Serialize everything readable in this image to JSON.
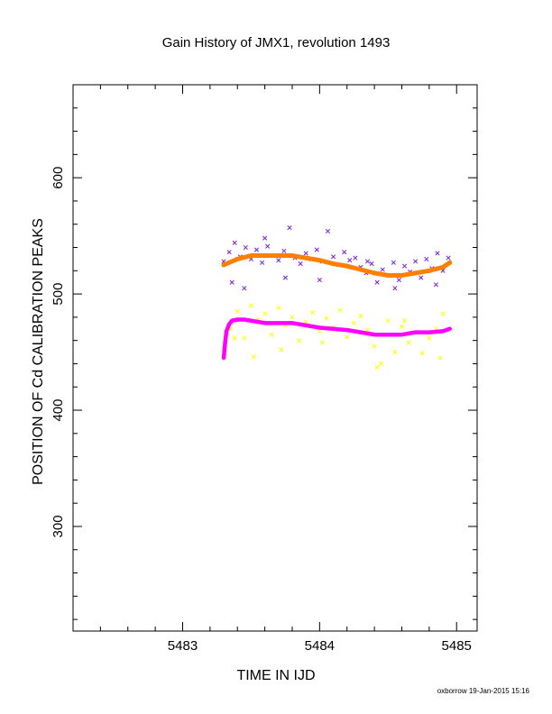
{
  "chart_data": {
    "type": "scatter",
    "title": "Gain History of JMX1, revolution 1493",
    "xlabel": "TIME IN IJD",
    "ylabel": "POSITION OF Cd CALIBRATION PEAKS",
    "footer": "oxborrow 19-Jan-2015 15:16",
    "xlim": [
      5482.2,
      5485.15
    ],
    "ylim": [
      210,
      680
    ],
    "x_ticks": [
      5483,
      5484,
      5485
    ],
    "x_tick_labels": [
      "5483",
      "5484",
      "5485"
    ],
    "y_ticks": [
      300,
      400,
      500,
      600
    ],
    "y_tick_labels": [
      "300",
      "400",
      "500",
      "600"
    ],
    "grid": false,
    "legend": "none",
    "series": [
      {
        "color": "#7a1fe0",
        "marker": "x",
        "x": [
          5483.3,
          5483.34,
          5483.38,
          5483.42,
          5483.46,
          5483.5,
          5483.54,
          5483.58,
          5483.62,
          5483.66,
          5483.7,
          5483.74,
          5483.78,
          5483.82,
          5483.86,
          5483.9,
          5483.94,
          5483.98,
          5484.02,
          5484.06,
          5484.1,
          5484.14,
          5484.18,
          5484.22,
          5484.26,
          5484.3,
          5484.34,
          5484.38,
          5484.42,
          5484.46,
          5484.5,
          5484.54,
          5484.58,
          5484.62,
          5484.66,
          5484.7,
          5484.74,
          5484.78,
          5484.82,
          5484.86,
          5484.9,
          5484.94,
          5483.36,
          5483.45,
          5483.6,
          5483.75,
          5484.0,
          5484.35,
          5484.55,
          5484.85
        ],
        "y": [
          528,
          536,
          544,
          532,
          540,
          530,
          538,
          527,
          541,
          533,
          529,
          537,
          557,
          531,
          526,
          535,
          530,
          538,
          528,
          554,
          532,
          525,
          536,
          529,
          531,
          523,
          518,
          526,
          510,
          521,
          516,
          527,
          512,
          524,
          519,
          528,
          514,
          530,
          522,
          535,
          520,
          531,
          510,
          505,
          548,
          514,
          512,
          528,
          505,
          508
        ]
      },
      {
        "color": "#ff7f00",
        "marker": "dot",
        "x": [
          5483.3,
          5483.4,
          5483.5,
          5483.6,
          5483.7,
          5483.8,
          5483.9,
          5484.0,
          5484.1,
          5484.2,
          5484.3,
          5484.4,
          5484.5,
          5484.6,
          5484.7,
          5484.8,
          5484.9,
          5484.95
        ],
        "y": [
          525,
          530,
          533,
          533,
          533,
          533,
          531,
          529,
          526,
          524,
          521,
          518,
          516,
          516,
          518,
          520,
          523,
          527
        ]
      },
      {
        "color": "#ffff00",
        "marker": "x",
        "x": [
          5483.35,
          5483.4,
          5483.45,
          5483.5,
          5483.55,
          5483.6,
          5483.65,
          5483.7,
          5483.75,
          5483.8,
          5483.85,
          5483.9,
          5483.95,
          5484.0,
          5484.05,
          5484.1,
          5484.15,
          5484.2,
          5484.25,
          5484.3,
          5484.35,
          5484.4,
          5484.45,
          5484.5,
          5484.55,
          5484.6,
          5484.65,
          5484.7,
          5484.75,
          5484.8,
          5484.85,
          5484.9,
          5483.38,
          5483.52,
          5483.72,
          5484.02,
          5484.42,
          5484.62,
          5484.88
        ],
        "y": [
          470,
          485,
          462,
          490,
          478,
          483,
          465,
          488,
          473,
          480,
          460,
          476,
          484,
          468,
          479,
          471,
          486,
          463,
          475,
          481,
          469,
          455,
          440,
          477,
          450,
          472,
          458,
          467,
          449,
          462,
          470,
          483,
          462,
          446,
          452,
          458,
          437,
          477,
          445
        ]
      },
      {
        "color": "#ff00ff",
        "marker": "plus",
        "x": [
          5483.3,
          5483.31,
          5483.32,
          5483.34,
          5483.36,
          5483.4,
          5483.45,
          5483.5,
          5483.6,
          5483.7,
          5483.8,
          5483.9,
          5484.0,
          5484.1,
          5484.2,
          5484.3,
          5484.4,
          5484.5,
          5484.6,
          5484.7,
          5484.8,
          5484.9,
          5484.95
        ],
        "y": [
          445,
          458,
          468,
          474,
          477,
          478,
          478,
          477,
          475,
          475,
          475,
          473,
          471,
          470,
          469,
          467,
          465,
          465,
          465,
          467,
          467,
          468,
          470
        ]
      }
    ]
  }
}
